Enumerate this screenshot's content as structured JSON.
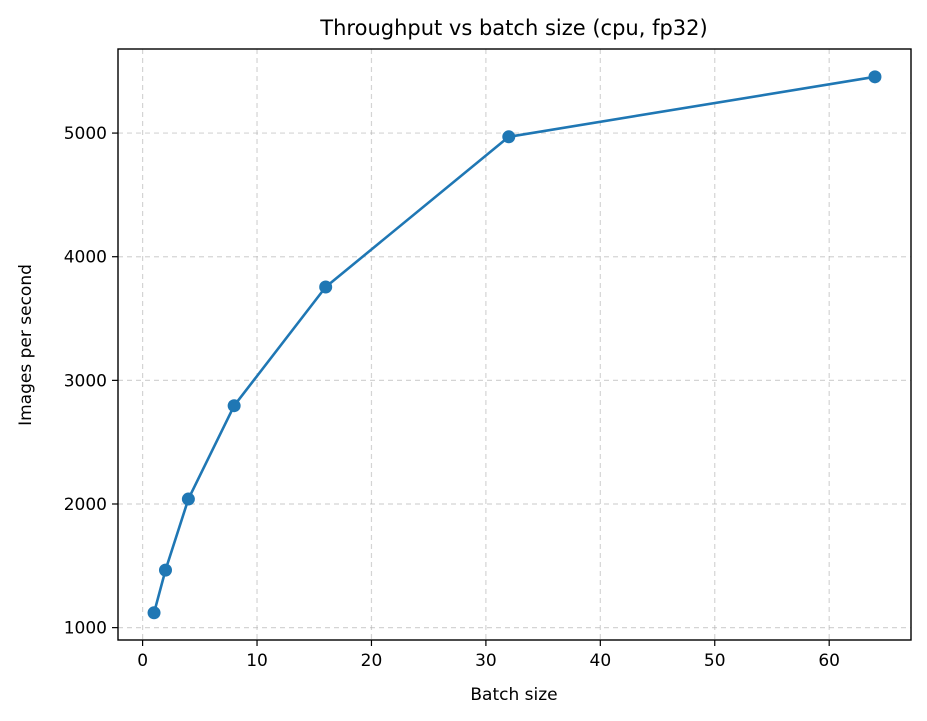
{
  "chart_data": {
    "type": "line",
    "title": "Throughput vs batch size (cpu, fp32)",
    "xlabel": "Batch size",
    "ylabel": "Images per second",
    "xlim": [
      -2.15,
      67.15
    ],
    "ylim": [
      900,
      5680
    ],
    "xticks": [
      0,
      10,
      20,
      30,
      40,
      50,
      60
    ],
    "yticks": [
      1000,
      2000,
      3000,
      4000,
      5000
    ],
    "xtick_labels": [
      "0",
      "10",
      "20",
      "30",
      "40",
      "50",
      "60"
    ],
    "ytick_labels": [
      "1000",
      "2000",
      "3000",
      "4000",
      "5000"
    ],
    "grid": true,
    "grid_style": "dashed",
    "series": [
      {
        "x": [
          1,
          2,
          4,
          8,
          16,
          32,
          64
        ],
        "y": [
          1120,
          1465,
          2040,
          2795,
          3755,
          4970,
          5455
        ],
        "color": "#1f77b4",
        "marker": "circle"
      }
    ]
  }
}
